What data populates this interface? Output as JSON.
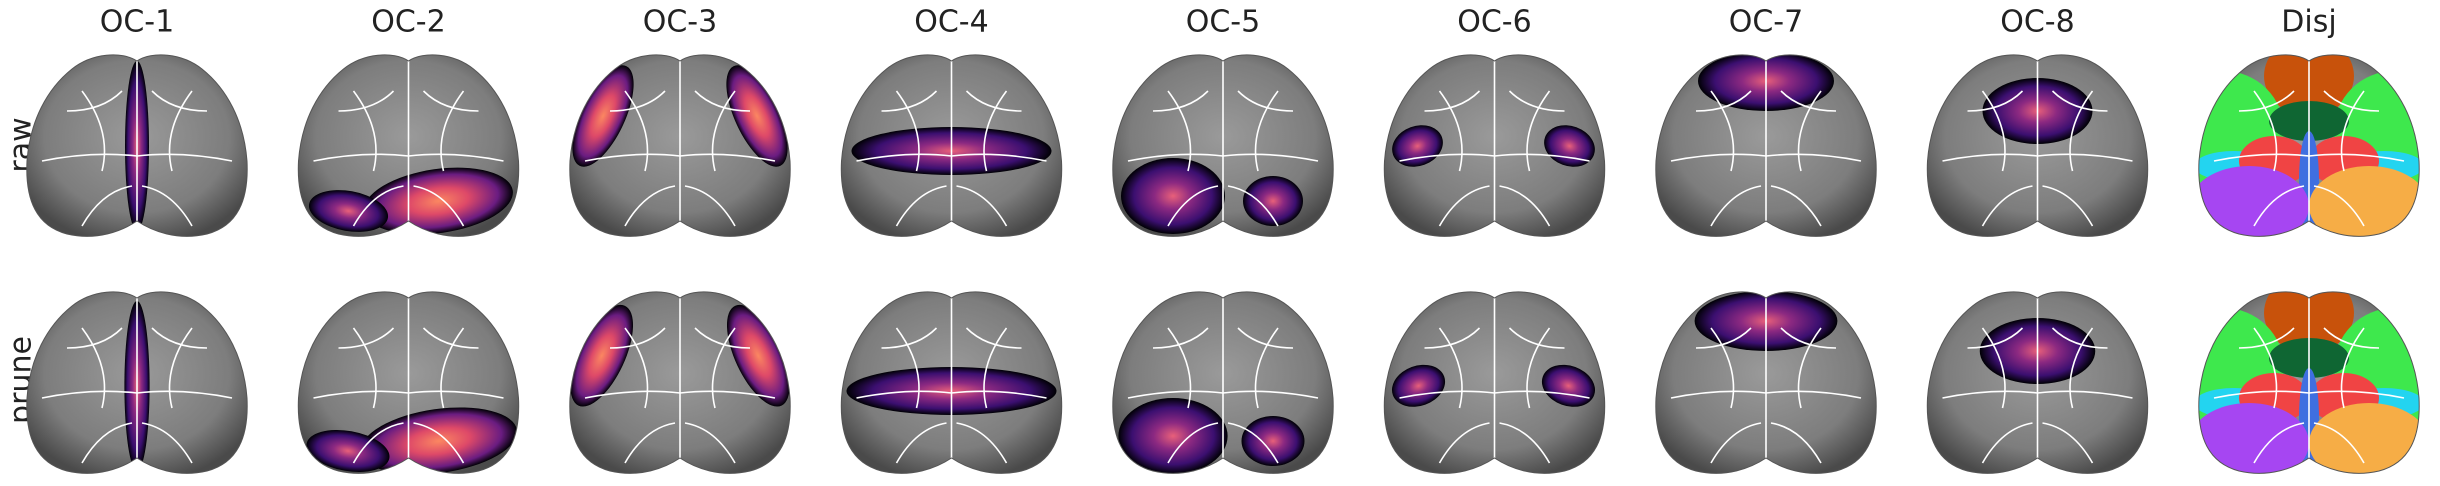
{
  "columns": [
    "OC-1",
    "OC-2",
    "OC-3",
    "OC-4",
    "OC-5",
    "OC-6",
    "OC-7",
    "OC-8",
    "Disj"
  ],
  "rows": [
    "raw",
    "prune"
  ]
}
